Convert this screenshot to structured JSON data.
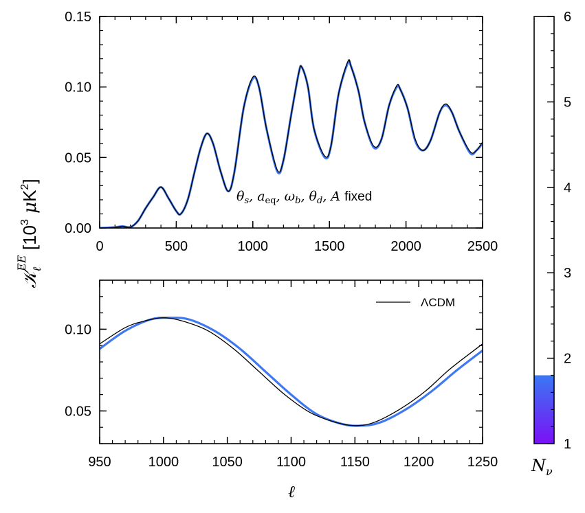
{
  "chart_data": [
    {
      "id": "top",
      "type": "line",
      "xlim": [
        0,
        2500
      ],
      "ylim": [
        0,
        0.15
      ],
      "xticks": [
        0,
        500,
        1000,
        1500,
        2000,
        2500
      ],
      "yticks": [
        0.0,
        0.05,
        0.1,
        0.15
      ],
      "xtick_labels": [
        "0",
        "500",
        "1000",
        "1500",
        "2000",
        "2500"
      ],
      "ytick_labels": [
        "0.00",
        "0.05",
        "0.10",
        "0.15"
      ],
      "annotation": "θs, aeq, ωb, θd, A fixed",
      "series": [
        {
          "color": "#3f78f0",
          "x": [
            0,
            100,
            150,
            200,
            250,
            300,
            350,
            400,
            450,
            500,
            530,
            575,
            620,
            660,
            700,
            740,
            790,
            840,
            880,
            940,
            1000,
            1040,
            1090,
            1160,
            1200,
            1250,
            1300,
            1320,
            1360,
            1400,
            1470,
            1510,
            1560,
            1620,
            1640,
            1690,
            1730,
            1790,
            1840,
            1890,
            1940,
            1960,
            2010,
            2060,
            2110,
            2160,
            2220,
            2260,
            2300,
            2350,
            2420,
            2460,
            2500
          ],
          "y": [
            0,
            0.0005,
            0.0012,
            0.0006,
            0.005,
            0.014,
            0.022,
            0.029,
            0.021,
            0.012,
            0.01,
            0.02,
            0.04,
            0.057,
            0.067,
            0.06,
            0.04,
            0.026,
            0.04,
            0.085,
            0.106,
            0.1,
            0.07,
            0.04,
            0.048,
            0.08,
            0.11,
            0.114,
            0.1,
            0.07,
            0.05,
            0.058,
            0.095,
            0.117,
            0.115,
            0.097,
            0.075,
            0.057,
            0.063,
            0.087,
            0.1,
            0.099,
            0.085,
            0.062,
            0.055,
            0.062,
            0.082,
            0.087,
            0.082,
            0.068,
            0.053,
            0.055,
            0.06
          ]
        },
        {
          "color": "#000000",
          "x": [
            0,
            100,
            150,
            200,
            250,
            300,
            350,
            400,
            450,
            500,
            530,
            575,
            620,
            660,
            700,
            740,
            790,
            840,
            880,
            940,
            1000,
            1040,
            1090,
            1160,
            1200,
            1250,
            1300,
            1320,
            1360,
            1400,
            1470,
            1510,
            1560,
            1620,
            1640,
            1690,
            1730,
            1790,
            1840,
            1890,
            1940,
            1960,
            2010,
            2060,
            2110,
            2160,
            2220,
            2260,
            2300,
            2350,
            2420,
            2460,
            2500
          ],
          "y": [
            0,
            0.0005,
            0.0012,
            0.0006,
            0.005,
            0.014,
            0.022,
            0.029,
            0.021,
            0.012,
            0.01,
            0.02,
            0.04,
            0.057,
            0.067,
            0.06,
            0.04,
            0.026,
            0.04,
            0.085,
            0.107,
            0.1,
            0.07,
            0.041,
            0.048,
            0.08,
            0.11,
            0.114,
            0.1,
            0.07,
            0.051,
            0.058,
            0.095,
            0.118,
            0.115,
            0.097,
            0.075,
            0.058,
            0.063,
            0.087,
            0.101,
            0.099,
            0.085,
            0.063,
            0.055,
            0.062,
            0.082,
            0.088,
            0.082,
            0.068,
            0.054,
            0.055,
            0.061
          ]
        }
      ]
    },
    {
      "id": "bottom",
      "type": "line",
      "xlim": [
        950,
        1250
      ],
      "ylim": [
        0.03,
        0.13
      ],
      "xticks": [
        950,
        1000,
        1050,
        1100,
        1150,
        1200,
        1250
      ],
      "yticks": [
        0.05,
        0.1
      ],
      "xtick_labels": [
        "950",
        "1000",
        "1050",
        "1100",
        "1150",
        "1200",
        "1250"
      ],
      "ytick_labels": [
        "0.05",
        "0.10"
      ],
      "xlabel": "ℓ",
      "legend": {
        "placement": "top-right",
        "entries": [
          "ΛCDM"
        ]
      },
      "series": [
        {
          "color": "#3f78f0",
          "x": [
            950,
            970,
            990,
            1005,
            1020,
            1040,
            1060,
            1080,
            1100,
            1120,
            1140,
            1155,
            1170,
            1190,
            1210,
            1230,
            1250
          ],
          "y": [
            0.088,
            0.099,
            0.106,
            0.107,
            0.106,
            0.099,
            0.088,
            0.074,
            0.06,
            0.048,
            0.042,
            0.041,
            0.043,
            0.051,
            0.062,
            0.075,
            0.087
          ]
        },
        {
          "name": "ΛCDM",
          "color": "#000000",
          "x": [
            950,
            970,
            985,
            1000,
            1015,
            1035,
            1055,
            1075,
            1095,
            1115,
            1135,
            1150,
            1165,
            1185,
            1205,
            1225,
            1250
          ],
          "y": [
            0.091,
            0.101,
            0.105,
            0.107,
            0.105,
            0.099,
            0.088,
            0.074,
            0.06,
            0.049,
            0.043,
            0.041,
            0.043,
            0.051,
            0.062,
            0.076,
            0.091
          ]
        }
      ]
    },
    {
      "id": "colorbar",
      "type": "colorbar",
      "range": [
        1,
        6
      ],
      "ticks": [
        1,
        2,
        3,
        4,
        5,
        6
      ],
      "tick_labels": [
        "1",
        "2",
        "3",
        "4",
        "5",
        "6"
      ],
      "filled_to": 1.8,
      "colors": {
        "low": "#7b10f5",
        "high": "#3a78f4"
      },
      "label": "N_ν"
    }
  ],
  "shared_ylabel": "𝒦_ℓ^EE [10^3 μK^2]"
}
